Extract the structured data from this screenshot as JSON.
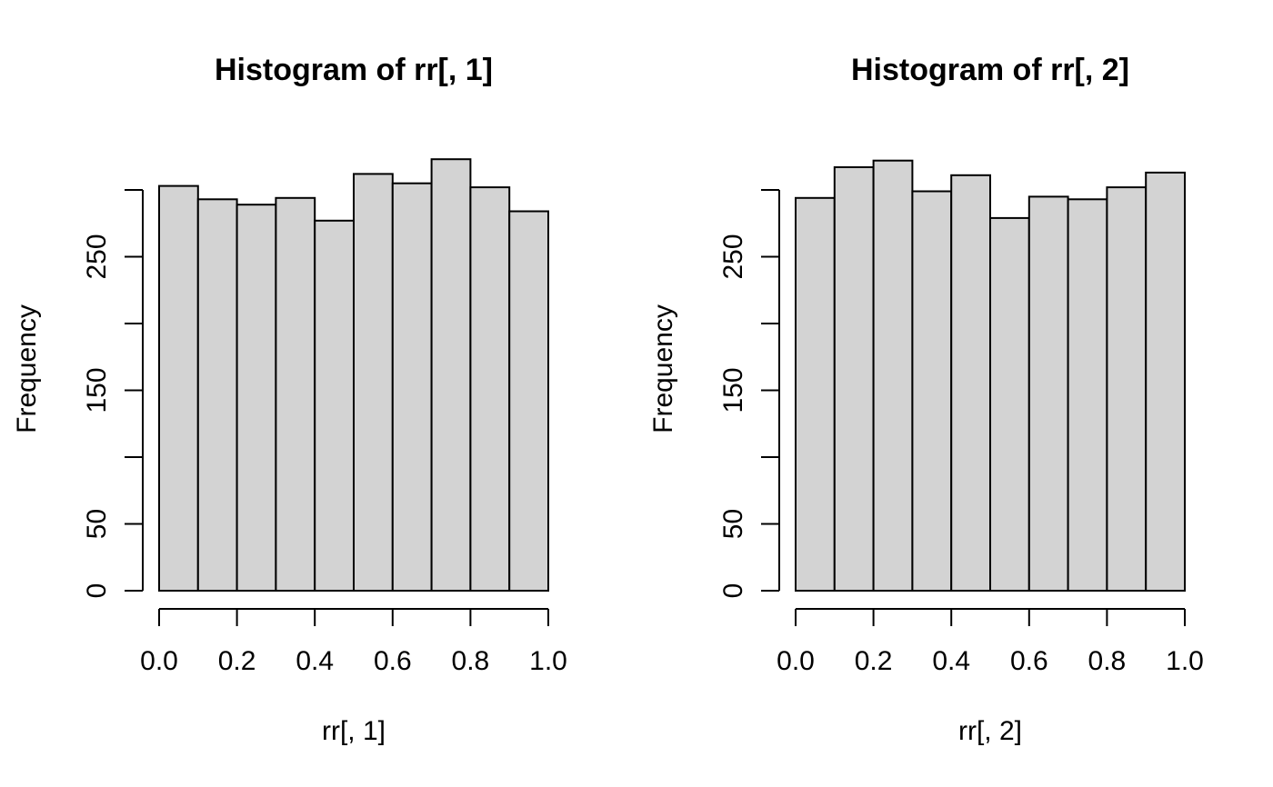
{
  "background": "#ffffff",
  "text_color": "#000000",
  "chart_data": [
    {
      "type": "bar",
      "subtype": "histogram",
      "title": "Histogram of rr[, 1]",
      "xlabel": "rr[, 1]",
      "ylabel": "Frequency",
      "bin_width": 0.1,
      "bin_edges": [
        0.0,
        0.1,
        0.2,
        0.3,
        0.4,
        0.5,
        0.6,
        0.7,
        0.8,
        0.9,
        1.0
      ],
      "counts": [
        303,
        293,
        289,
        294,
        277,
        312,
        305,
        323,
        302,
        284
      ],
      "xlim": [
        0,
        1
      ],
      "ylim": [
        0,
        300
      ],
      "x_tick_values": [
        0.0,
        0.2,
        0.4,
        0.6,
        0.8,
        1.0
      ],
      "x_tick_labels": [
        "0.0",
        "0.2",
        "0.4",
        "0.6",
        "0.8",
        "1.0"
      ],
      "y_tick_values": [
        0,
        50,
        100,
        150,
        200,
        250,
        300
      ],
      "y_tick_labels": [
        "0",
        "50",
        "",
        "150",
        "",
        "250",
        ""
      ],
      "grid": false,
      "legend": "none",
      "bar_fill": "#d3d3d3",
      "bar_stroke": "#000000",
      "axis_color": "#000000"
    },
    {
      "type": "bar",
      "subtype": "histogram",
      "title": "Histogram of rr[, 2]",
      "xlabel": "rr[, 2]",
      "ylabel": "Frequency",
      "bin_width": 0.1,
      "bin_edges": [
        0.0,
        0.1,
        0.2,
        0.3,
        0.4,
        0.5,
        0.6,
        0.7,
        0.8,
        0.9,
        1.0
      ],
      "counts": [
        294,
        317,
        322,
        299,
        311,
        279,
        295,
        293,
        302,
        313
      ],
      "xlim": [
        0,
        1
      ],
      "ylim": [
        0,
        300
      ],
      "x_tick_values": [
        0.0,
        0.2,
        0.4,
        0.6,
        0.8,
        1.0
      ],
      "x_tick_labels": [
        "0.0",
        "0.2",
        "0.4",
        "0.6",
        "0.8",
        "1.0"
      ],
      "y_tick_values": [
        0,
        50,
        100,
        150,
        200,
        250,
        300
      ],
      "y_tick_labels": [
        "0",
        "50",
        "",
        "150",
        "",
        "250",
        ""
      ],
      "grid": false,
      "legend": "none",
      "bar_fill": "#d3d3d3",
      "bar_stroke": "#000000",
      "axis_color": "#000000"
    }
  ]
}
